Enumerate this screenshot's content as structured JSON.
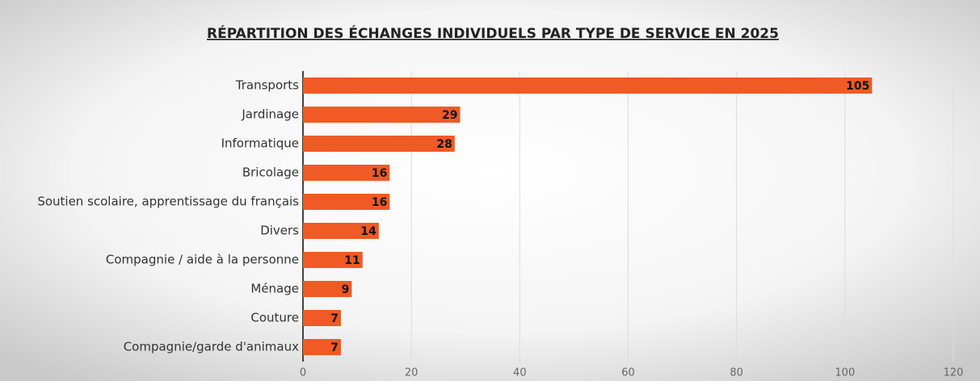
{
  "chart_data": {
    "type": "bar",
    "orientation": "horizontal",
    "title": "RÉPARTITION DES ÉCHANGES INDIVIDUELS PAR TYPE DE SERVICE EN 2025",
    "categories": [
      "Transports",
      "Jardinage",
      "Informatique",
      "Bricolage",
      "Soutien scolaire, apprentissage du français",
      "Divers",
      "Compagnie / aide à la personne",
      "Ménage",
      "Couture",
      "Compagnie/garde d'animaux"
    ],
    "values": [
      105,
      29,
      28,
      16,
      16,
      14,
      11,
      9,
      7,
      7
    ],
    "color": "#f05a24",
    "xlim": [
      0,
      120
    ],
    "xticks": [
      0,
      20,
      40,
      60,
      80,
      100,
      120
    ],
    "grid": true,
    "data_labels": true
  }
}
